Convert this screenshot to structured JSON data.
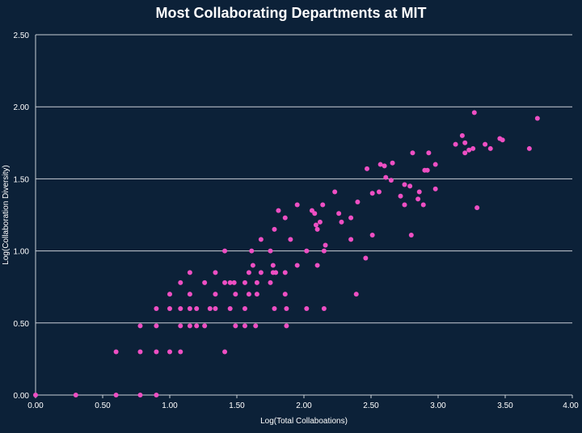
{
  "chart_data": {
    "type": "scatter",
    "title": "Most Collaborating Departments at MIT",
    "xlabel": "Log(Total Collaboations)",
    "ylabel": "Log(Collaboration Diversity)",
    "xlim": [
      0,
      4
    ],
    "ylim": [
      0,
      2.5
    ],
    "x_ticks": [
      "0.00",
      "0.50",
      "1.00",
      "1.50",
      "2.00",
      "2.50",
      "3.00",
      "3.50",
      "4.00"
    ],
    "y_ticks": [
      "0.00",
      "0.50",
      "1.00",
      "1.50",
      "2.00",
      "2.50"
    ],
    "grid": "horizontal",
    "legend": "none",
    "colors": {
      "background": "#0c2138",
      "marker": "#ee4fc3",
      "gridline": "#c9ced6",
      "text": "#ffffff"
    },
    "points": [
      [
        0.0,
        0.0
      ],
      [
        0.3,
        0.0
      ],
      [
        0.6,
        0.0
      ],
      [
        0.78,
        0.0
      ],
      [
        0.9,
        0.0
      ],
      [
        0.6,
        0.3
      ],
      [
        0.78,
        0.3
      ],
      [
        0.9,
        0.3
      ],
      [
        1.0,
        0.3
      ],
      [
        1.08,
        0.3
      ],
      [
        1.41,
        0.3
      ],
      [
        0.78,
        0.48
      ],
      [
        0.9,
        0.48
      ],
      [
        1.08,
        0.48
      ],
      [
        1.15,
        0.48
      ],
      [
        1.2,
        0.48
      ],
      [
        1.26,
        0.48
      ],
      [
        1.49,
        0.48
      ],
      [
        1.56,
        0.48
      ],
      [
        1.64,
        0.48
      ],
      [
        1.87,
        0.48
      ],
      [
        0.9,
        0.6
      ],
      [
        1.0,
        0.6
      ],
      [
        1.08,
        0.6
      ],
      [
        1.15,
        0.6
      ],
      [
        1.2,
        0.6
      ],
      [
        1.3,
        0.6
      ],
      [
        1.34,
        0.6
      ],
      [
        1.45,
        0.6
      ],
      [
        1.56,
        0.6
      ],
      [
        1.78,
        0.6
      ],
      [
        1.87,
        0.6
      ],
      [
        2.02,
        0.6
      ],
      [
        2.15,
        0.6
      ],
      [
        1.0,
        0.7
      ],
      [
        1.15,
        0.7
      ],
      [
        1.34,
        0.7
      ],
      [
        1.49,
        0.7
      ],
      [
        1.59,
        0.7
      ],
      [
        1.65,
        0.7
      ],
      [
        1.86,
        0.7
      ],
      [
        2.39,
        0.7
      ],
      [
        1.08,
        0.78
      ],
      [
        1.26,
        0.78
      ],
      [
        1.41,
        0.78
      ],
      [
        1.45,
        0.78
      ],
      [
        1.48,
        0.78
      ],
      [
        1.56,
        0.78
      ],
      [
        1.65,
        0.78
      ],
      [
        1.75,
        0.78
      ],
      [
        1.15,
        0.85
      ],
      [
        1.34,
        0.85
      ],
      [
        1.59,
        0.85
      ],
      [
        1.68,
        0.85
      ],
      [
        1.77,
        0.85
      ],
      [
        1.79,
        0.85
      ],
      [
        1.86,
        0.85
      ],
      [
        1.62,
        0.9
      ],
      [
        1.77,
        0.9
      ],
      [
        1.95,
        0.9
      ],
      [
        2.1,
        0.9
      ],
      [
        2.46,
        0.95
      ],
      [
        1.41,
        1.0
      ],
      [
        1.61,
        1.0
      ],
      [
        1.75,
        1.0
      ],
      [
        2.02,
        1.0
      ],
      [
        2.15,
        1.0
      ],
      [
        1.68,
        1.08
      ],
      [
        1.9,
        1.08
      ],
      [
        2.16,
        1.04
      ],
      [
        2.35,
        1.08
      ],
      [
        2.51,
        1.11
      ],
      [
        2.8,
        1.11
      ],
      [
        1.78,
        1.15
      ],
      [
        2.1,
        1.15
      ],
      [
        2.09,
        1.18
      ],
      [
        2.12,
        1.2
      ],
      [
        2.28,
        1.2
      ],
      [
        1.86,
        1.23
      ],
      [
        2.08,
        1.26
      ],
      [
        2.06,
        1.28
      ],
      [
        1.81,
        1.28
      ],
      [
        2.26,
        1.26
      ],
      [
        2.35,
        1.23
      ],
      [
        1.95,
        1.32
      ],
      [
        2.14,
        1.32
      ],
      [
        2.4,
        1.34
      ],
      [
        2.75,
        1.32
      ],
      [
        2.89,
        1.32
      ],
      [
        3.29,
        1.3
      ],
      [
        2.23,
        1.41
      ],
      [
        2.51,
        1.4
      ],
      [
        2.56,
        1.41
      ],
      [
        2.72,
        1.38
      ],
      [
        2.85,
        1.36
      ],
      [
        2.79,
        1.45
      ],
      [
        2.98,
        1.43
      ],
      [
        2.75,
        1.46
      ],
      [
        2.86,
        1.41
      ],
      [
        2.47,
        1.57
      ],
      [
        2.61,
        1.51
      ],
      [
        2.65,
        1.49
      ],
      [
        2.57,
        1.6
      ],
      [
        2.6,
        1.59
      ],
      [
        2.66,
        1.61
      ],
      [
        2.9,
        1.56
      ],
      [
        2.92,
        1.56
      ],
      [
        2.98,
        1.6
      ],
      [
        2.81,
        1.68
      ],
      [
        2.93,
        1.68
      ],
      [
        3.13,
        1.74
      ],
      [
        3.18,
        1.8
      ],
      [
        3.2,
        1.68
      ],
      [
        3.2,
        1.75
      ],
      [
        3.23,
        1.7
      ],
      [
        3.26,
        1.71
      ],
      [
        3.35,
        1.74
      ],
      [
        3.39,
        1.71
      ],
      [
        3.46,
        1.78
      ],
      [
        3.48,
        1.77
      ],
      [
        3.68,
        1.71
      ],
      [
        3.27,
        1.96
      ],
      [
        3.74,
        1.92
      ]
    ]
  }
}
